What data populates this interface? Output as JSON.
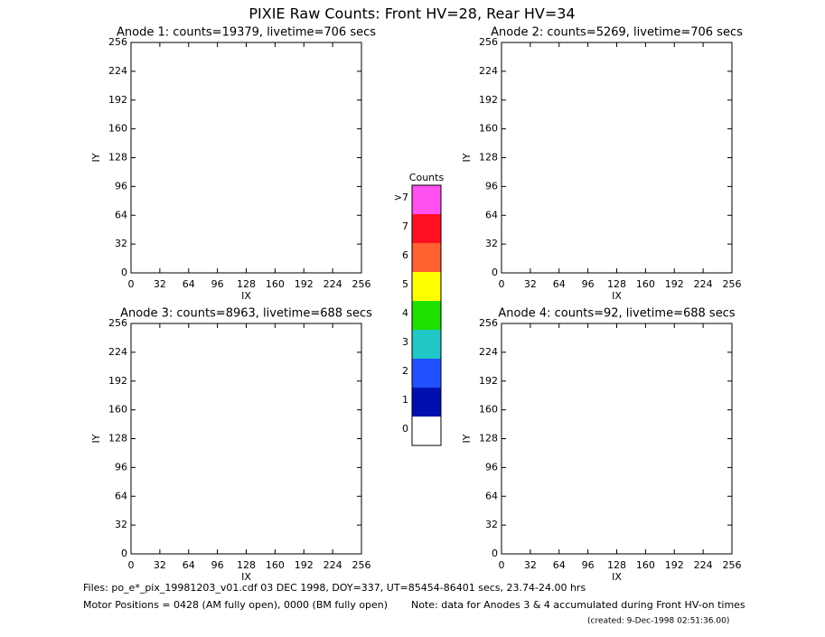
{
  "title": "PIXIE Raw Counts:  Front HV=28, Rear HV=34",
  "chart_data": [
    {
      "type": "heatmap",
      "title": "Anode 1: counts=19379, livetime=706 secs",
      "xlabel": "IX",
      "ylabel": "IY",
      "xlim": [
        0,
        256
      ],
      "ylim": [
        0,
        256
      ],
      "xticks": [
        0,
        32,
        64,
        96,
        128,
        160,
        192,
        224,
        256
      ],
      "yticks": [
        0,
        32,
        64,
        96,
        128,
        160,
        192,
        224,
        256
      ]
    },
    {
      "type": "heatmap",
      "title": "Anode 2: counts=5269, livetime=706 secs",
      "xlabel": "IX",
      "ylabel": "IY",
      "xlim": [
        0,
        256
      ],
      "ylim": [
        0,
        256
      ],
      "xticks": [
        0,
        32,
        64,
        96,
        128,
        160,
        192,
        224,
        256
      ],
      "yticks": [
        0,
        32,
        64,
        96,
        128,
        160,
        192,
        224,
        256
      ]
    },
    {
      "type": "heatmap",
      "title": "Anode 3: counts=8963, livetime=688 secs",
      "xlabel": "IX",
      "ylabel": "IY",
      "xlim": [
        0,
        256
      ],
      "ylim": [
        0,
        256
      ],
      "xticks": [
        0,
        32,
        64,
        96,
        128,
        160,
        192,
        224,
        256
      ],
      "yticks": [
        0,
        32,
        64,
        96,
        128,
        160,
        192,
        224,
        256
      ]
    },
    {
      "type": "heatmap",
      "title": "Anode 4: counts=92, livetime=688 secs",
      "xlabel": "IX",
      "ylabel": "IY",
      "xlim": [
        0,
        256
      ],
      "ylim": [
        0,
        256
      ],
      "xticks": [
        0,
        32,
        64,
        96,
        128,
        160,
        192,
        224,
        256
      ],
      "yticks": [
        0,
        32,
        64,
        96,
        128,
        160,
        192,
        224,
        256
      ]
    }
  ],
  "colorbar": {
    "title": "Counts",
    "labels": [
      "0",
      "1",
      "2",
      "3",
      "4",
      "5",
      "6",
      "7",
      ">7"
    ],
    "colors": [
      "#ffffff",
      "#0010b0",
      "#2050ff",
      "#20c8c8",
      "#20e000",
      "#ffff00",
      "#ff6030",
      "#ff1020",
      "#ff50f0"
    ]
  },
  "footer": {
    "files": "Files: po_e*_pix_19981203_v01.cdf    03 DEC 1998, DOY=337, UT=85454-86401 secs, 23.74-24.00 hrs",
    "motor": "Motor Positions = 0428 (AM fully open), 0000 (BM fully open)",
    "note": "Note: data for Anodes 3 & 4 accumulated during Front HV-on times",
    "created": "(created:  9-Dec-1998 02:51:36.00)"
  }
}
